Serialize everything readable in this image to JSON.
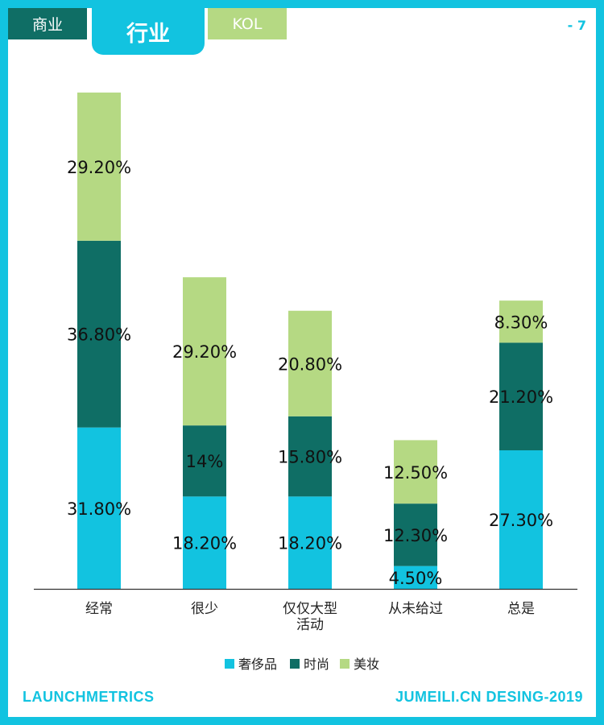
{
  "tabs": [
    {
      "label": "商业",
      "color": "#0f6e65"
    },
    {
      "label": "行业",
      "color": "#12c3e0"
    },
    {
      "label": "KOL",
      "color": "#b5d983"
    }
  ],
  "page_number": "- 7",
  "footer": {
    "left": "LAUNCHMETRICS",
    "right": "JUMEILI.CN DESING-2019"
  },
  "colors": {
    "accent": "#12c3e0",
    "dark": "#0f6e65",
    "light": "#b5d983"
  },
  "chart_data": {
    "type": "bar",
    "stacked": true,
    "categories": [
      [
        "经常"
      ],
      [
        "很少"
      ],
      [
        "仅仅大型",
        "活动"
      ],
      [
        "从未给过"
      ],
      [
        "总是"
      ]
    ],
    "series": [
      {
        "name": "奢侈品",
        "color": "#12c3e0",
        "values": [
          31.8,
          18.2,
          18.2,
          4.5,
          27.3
        ],
        "labels": [
          "31.80%",
          "18.20%",
          "18.20%",
          "4.50%",
          "27.30%"
        ]
      },
      {
        "name": "时尚",
        "color": "#0f6e65",
        "values": [
          36.8,
          14.0,
          15.8,
          12.3,
          21.2
        ],
        "labels": [
          "36.80%",
          "14%",
          "15.80%",
          "12.30%",
          "21.20%"
        ]
      },
      {
        "name": "美妆",
        "color": "#b5d983",
        "values": [
          29.2,
          29.2,
          20.8,
          12.5,
          8.3
        ],
        "labels": [
          "29.20%",
          "29.20%",
          "20.80%",
          "12.50%",
          "8.30%"
        ]
      }
    ],
    "ylim": [
      0,
      100
    ],
    "legend_position": "bottom"
  }
}
